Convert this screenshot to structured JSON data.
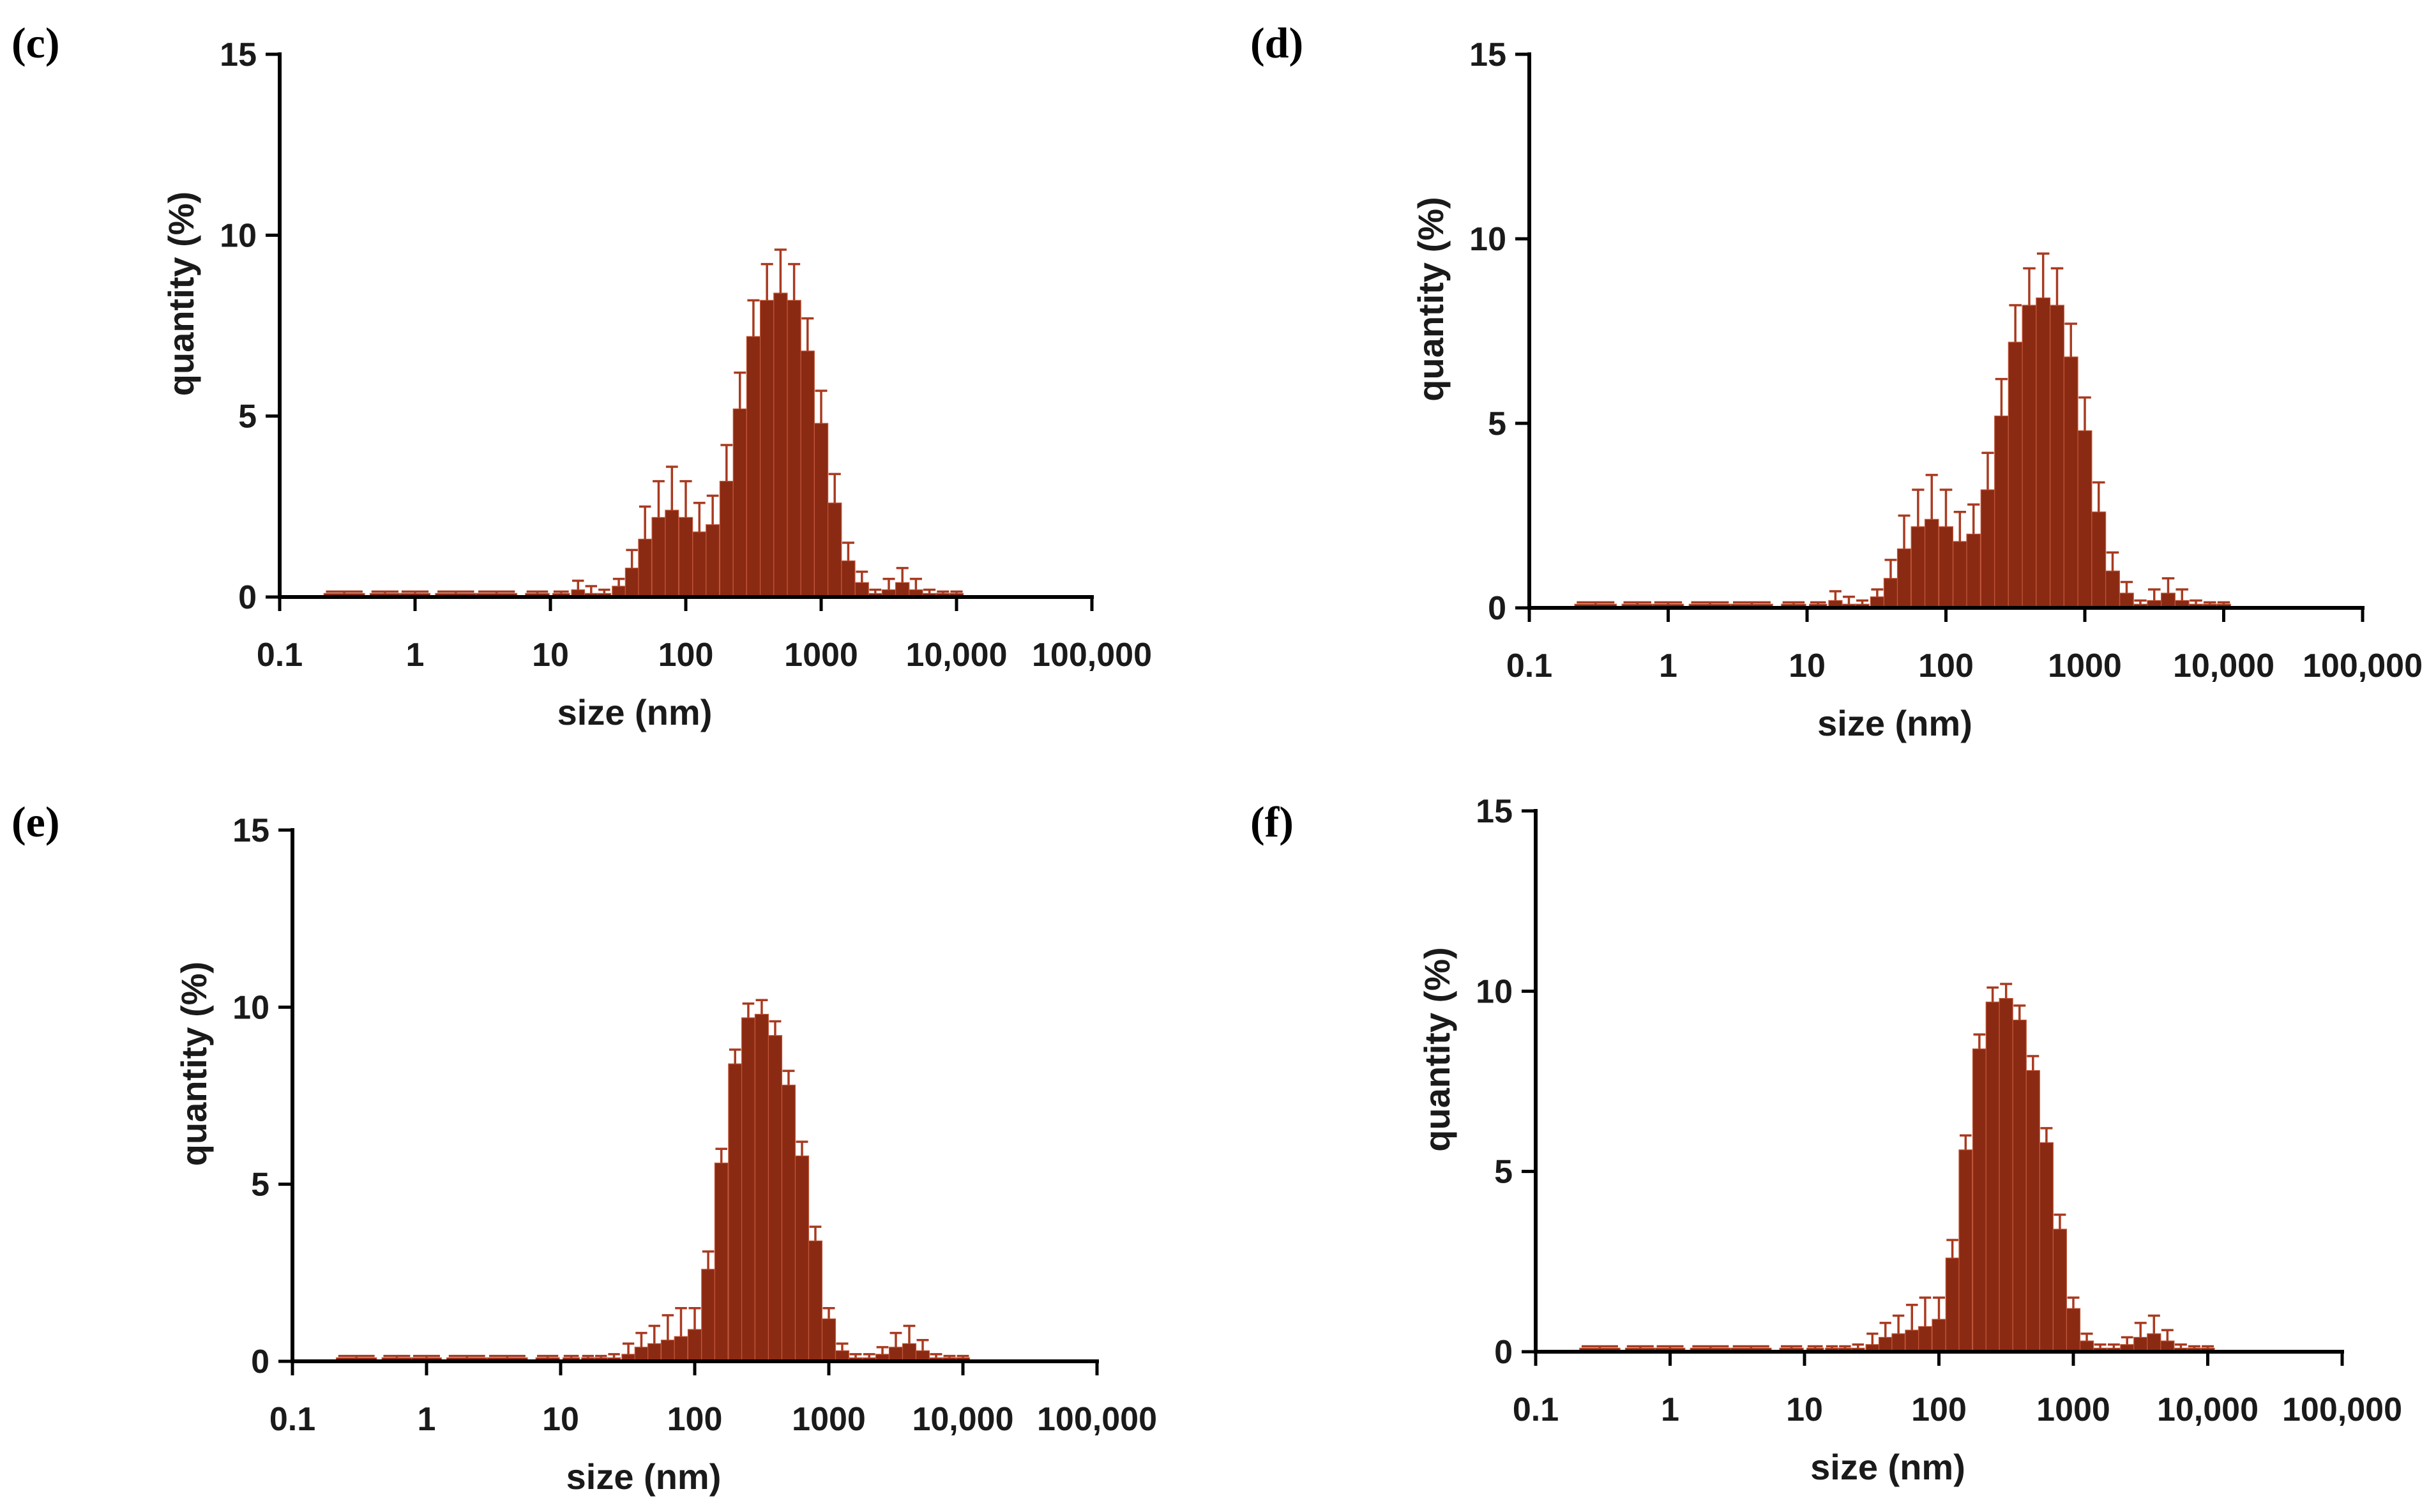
{
  "figure": {
    "bar_color": "#8B2A12",
    "bar_edge_color": "#C0573A",
    "error_color": "#A83A20"
  },
  "chart_data": [
    {
      "panel": "(c)",
      "type": "bar",
      "xscale": "log",
      "xlabel": "size (nm)",
      "ylabel": "quantity (%)",
      "xlim": [
        0.1,
        100000
      ],
      "ylim": [
        0,
        15
      ],
      "xticks": [
        0.1,
        1,
        10,
        100,
        1000,
        10000,
        100000
      ],
      "xtick_labels": [
        "0.1",
        "1",
        "10",
        "100",
        "1000",
        "10,000",
        "100,000"
      ],
      "yticks": [
        0,
        5,
        10,
        15
      ],
      "ytick_labels": [
        "0",
        "5",
        "10",
        "15"
      ],
      "x": [
        0.3,
        0.6,
        1,
        2,
        4,
        8,
        12,
        16,
        20,
        25,
        32,
        40,
        50,
        63,
        79,
        100,
        126,
        158,
        200,
        251,
        316,
        398,
        501,
        631,
        794,
        1000,
        1259,
        1585,
        2000,
        2512,
        3162,
        3981,
        5012,
        6310,
        7943,
        10000
      ],
      "values": [
        0.1,
        0.1,
        0.1,
        0.1,
        0.1,
        0.1,
        0.1,
        0.2,
        0.1,
        0.1,
        0.3,
        0.8,
        1.6,
        2.2,
        2.4,
        2.2,
        1.8,
        2.0,
        3.2,
        5.2,
        7.2,
        8.2,
        8.4,
        8.2,
        6.8,
        4.8,
        2.6,
        1.0,
        0.4,
        0.1,
        0.2,
        0.4,
        0.2,
        0.1,
        0.1,
        0.1
      ],
      "errors": [
        0.05,
        0.05,
        0.05,
        0.05,
        0.05,
        0.05,
        0.05,
        0.25,
        0.2,
        0.1,
        0.2,
        0.5,
        0.9,
        1.0,
        1.2,
        1.0,
        0.8,
        0.8,
        1.0,
        1.0,
        1.0,
        1.0,
        1.2,
        1.0,
        0.9,
        0.9,
        0.8,
        0.5,
        0.3,
        0.1,
        0.3,
        0.4,
        0.3,
        0.1,
        0.05,
        0.05
      ]
    },
    {
      "panel": "(d)",
      "type": "bar",
      "xscale": "log",
      "xlabel": "size (nm)",
      "ylabel": "quantity (%)",
      "xlim": [
        0.1,
        100000
      ],
      "ylim": [
        0,
        15
      ],
      "xticks": [
        0.1,
        1,
        10,
        100,
        1000,
        10000,
        100000
      ],
      "xtick_labels": [
        "0.1",
        "1",
        "10",
        "100",
        "1000",
        "10,000",
        "100,000"
      ],
      "yticks": [
        0,
        5,
        10,
        15
      ],
      "ytick_labels": [
        "0",
        "5",
        "10",
        "15"
      ],
      "x": [
        0.3,
        0.6,
        1,
        2,
        4,
        8,
        12,
        16,
        20,
        25,
        32,
        40,
        50,
        63,
        79,
        100,
        126,
        158,
        200,
        251,
        316,
        398,
        501,
        631,
        794,
        1000,
        1259,
        1585,
        2000,
        2512,
        3162,
        3981,
        5012,
        6310,
        7943,
        10000
      ],
      "values": [
        0.1,
        0.1,
        0.1,
        0.1,
        0.1,
        0.1,
        0.1,
        0.2,
        0.1,
        0.1,
        0.3,
        0.8,
        1.6,
        2.2,
        2.4,
        2.2,
        1.8,
        2.0,
        3.2,
        5.2,
        7.2,
        8.2,
        8.4,
        8.2,
        6.8,
        4.8,
        2.6,
        1.0,
        0.4,
        0.1,
        0.2,
        0.4,
        0.2,
        0.1,
        0.1,
        0.1
      ],
      "errors": [
        0.05,
        0.05,
        0.05,
        0.05,
        0.05,
        0.05,
        0.05,
        0.25,
        0.2,
        0.1,
        0.2,
        0.5,
        0.9,
        1.0,
        1.2,
        1.0,
        0.8,
        0.8,
        1.0,
        1.0,
        1.0,
        1.0,
        1.2,
        1.0,
        0.9,
        0.9,
        0.8,
        0.5,
        0.3,
        0.1,
        0.3,
        0.4,
        0.3,
        0.1,
        0.05,
        0.05
      ]
    },
    {
      "panel": "(e)",
      "type": "bar",
      "xscale": "log",
      "xlabel": "size (nm)",
      "ylabel": "quantity (%)",
      "xlim": [
        0.1,
        100000
      ],
      "ylim": [
        0,
        15
      ],
      "xticks": [
        0.1,
        1,
        10,
        100,
        1000,
        10000,
        100000
      ],
      "xtick_labels": [
        "0.1",
        "1",
        "10",
        "100",
        "1000",
        "10,000",
        "100,000"
      ],
      "yticks": [
        0,
        5,
        10,
        15
      ],
      "ytick_labels": [
        "0",
        "5",
        "10",
        "15"
      ],
      "x": [
        0.3,
        0.6,
        1,
        2,
        4,
        8,
        12,
        16,
        20,
        25,
        32,
        40,
        50,
        63,
        79,
        100,
        126,
        158,
        200,
        251,
        316,
        398,
        501,
        631,
        794,
        1000,
        1259,
        1585,
        2000,
        2512,
        3162,
        3981,
        5012,
        6310,
        7943,
        10000
      ],
      "values": [
        0.1,
        0.1,
        0.1,
        0.1,
        0.1,
        0.1,
        0.1,
        0.1,
        0.1,
        0.1,
        0.2,
        0.4,
        0.5,
        0.6,
        0.7,
        0.9,
        2.6,
        5.6,
        8.4,
        9.7,
        9.8,
        9.2,
        7.8,
        5.8,
        3.4,
        1.2,
        0.3,
        0.1,
        0.1,
        0.2,
        0.4,
        0.5,
        0.3,
        0.1,
        0.1,
        0.1
      ],
      "errors": [
        0.05,
        0.05,
        0.05,
        0.05,
        0.05,
        0.05,
        0.05,
        0.05,
        0.05,
        0.1,
        0.3,
        0.4,
        0.5,
        0.7,
        0.8,
        0.6,
        0.5,
        0.4,
        0.4,
        0.4,
        0.4,
        0.4,
        0.4,
        0.4,
        0.4,
        0.3,
        0.2,
        0.1,
        0.1,
        0.2,
        0.4,
        0.5,
        0.3,
        0.1,
        0.05,
        0.05
      ]
    },
    {
      "panel": "(f)",
      "type": "bar",
      "xscale": "log",
      "xlabel": "size (nm)",
      "ylabel": "quantity (%)",
      "xlim": [
        0.1,
        100000
      ],
      "ylim": [
        0,
        15
      ],
      "xticks": [
        0.1,
        1,
        10,
        100,
        1000,
        10000,
        100000
      ],
      "xtick_labels": [
        "0.1",
        "1",
        "10",
        "100",
        "1000",
        "10,000",
        "100,000"
      ],
      "yticks": [
        0,
        5,
        10,
        15
      ],
      "ytick_labels": [
        "0",
        "5",
        "10",
        "15"
      ],
      "x": [
        0.3,
        0.6,
        1,
        2,
        4,
        8,
        12,
        16,
        20,
        25,
        32,
        40,
        50,
        63,
        79,
        100,
        126,
        158,
        200,
        251,
        316,
        398,
        501,
        631,
        794,
        1000,
        1259,
        1585,
        2000,
        2512,
        3162,
        3981,
        5012,
        6310,
        7943,
        10000
      ],
      "values": [
        0.1,
        0.1,
        0.1,
        0.1,
        0.1,
        0.1,
        0.1,
        0.1,
        0.1,
        0.1,
        0.2,
        0.4,
        0.5,
        0.6,
        0.7,
        0.9,
        2.6,
        5.6,
        8.4,
        9.7,
        9.8,
        9.2,
        7.8,
        5.8,
        3.4,
        1.2,
        0.3,
        0.1,
        0.1,
        0.2,
        0.4,
        0.5,
        0.3,
        0.1,
        0.1,
        0.1
      ],
      "errors": [
        0.05,
        0.05,
        0.05,
        0.05,
        0.05,
        0.05,
        0.05,
        0.05,
        0.05,
        0.1,
        0.3,
        0.4,
        0.5,
        0.7,
        0.8,
        0.6,
        0.5,
        0.4,
        0.4,
        0.4,
        0.4,
        0.4,
        0.4,
        0.4,
        0.4,
        0.3,
        0.2,
        0.1,
        0.1,
        0.2,
        0.4,
        0.5,
        0.3,
        0.1,
        0.05,
        0.05
      ]
    }
  ]
}
